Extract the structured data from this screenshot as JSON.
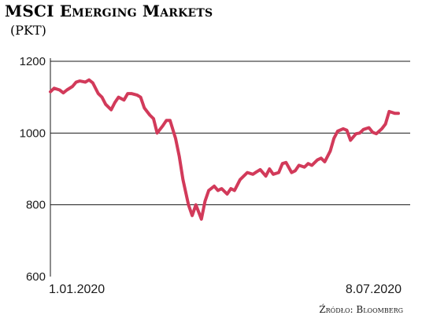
{
  "colors": {
    "line": "#d23a5a",
    "grid": "#1a1a1a",
    "text": "#1a1a1a"
  },
  "chart_data": {
    "type": "line",
    "title": "MSCI Emerging Markets",
    "subtitle": "(PKT)",
    "source": "Źródło: Bloomberg",
    "x_tick_labels": [
      "1.01.2020",
      "8.07.2020"
    ],
    "x_range": [
      "2020-01-01",
      "2020-07-08"
    ],
    "y_ticks": [
      600,
      800,
      1000,
      1200
    ],
    "ylim": [
      600,
      1200
    ],
    "grid": "horizontal",
    "series": [
      {
        "x": [
          "2020-01-01",
          "2020-01-03",
          "2020-01-06",
          "2020-01-08",
          "2020-01-10",
          "2020-01-13",
          "2020-01-15",
          "2020-01-17",
          "2020-01-20",
          "2020-01-22",
          "2020-01-24",
          "2020-01-27",
          "2020-01-29",
          "2020-01-31",
          "2020-02-03",
          "2020-02-05",
          "2020-02-07",
          "2020-02-10",
          "2020-02-12",
          "2020-02-14",
          "2020-02-17",
          "2020-02-19",
          "2020-02-21",
          "2020-02-24",
          "2020-02-26",
          "2020-02-28",
          "2020-03-02",
          "2020-03-04",
          "2020-03-06",
          "2020-03-09",
          "2020-03-11",
          "2020-03-13",
          "2020-03-16",
          "2020-03-18",
          "2020-03-20",
          "2020-03-23",
          "2020-03-25",
          "2020-03-27",
          "2020-03-30",
          "2020-04-01",
          "2020-04-03",
          "2020-04-06",
          "2020-04-08",
          "2020-04-10",
          "2020-04-13",
          "2020-04-15",
          "2020-04-17",
          "2020-04-20",
          "2020-04-22",
          "2020-04-24",
          "2020-04-27",
          "2020-04-29",
          "2020-05-01",
          "2020-05-04",
          "2020-05-06",
          "2020-05-08",
          "2020-05-11",
          "2020-05-13",
          "2020-05-15",
          "2020-05-18",
          "2020-05-20",
          "2020-05-22",
          "2020-05-25",
          "2020-05-27",
          "2020-05-29",
          "2020-06-01",
          "2020-06-03",
          "2020-06-05",
          "2020-06-08",
          "2020-06-10",
          "2020-06-12",
          "2020-06-15",
          "2020-06-17",
          "2020-06-19",
          "2020-06-22",
          "2020-06-24",
          "2020-06-26",
          "2020-06-29",
          "2020-07-01",
          "2020-07-03",
          "2020-07-06",
          "2020-07-08"
        ],
        "y": [
          1115,
          1125,
          1120,
          1112,
          1120,
          1130,
          1142,
          1145,
          1142,
          1148,
          1140,
          1110,
          1100,
          1080,
          1065,
          1085,
          1100,
          1092,
          1110,
          1110,
          1106,
          1100,
          1070,
          1050,
          1040,
          1000,
          1020,
          1035,
          1035,
          985,
          935,
          870,
          800,
          770,
          800,
          760,
          810,
          840,
          852,
          840,
          845,
          830,
          845,
          840,
          870,
          880,
          890,
          885,
          892,
          898,
          880,
          900,
          885,
          890,
          915,
          918,
          890,
          895,
          910,
          905,
          915,
          910,
          925,
          930,
          920,
          950,
          985,
          1005,
          1012,
          1008,
          980,
          998,
          1000,
          1010,
          1015,
          1002,
          998,
          1012,
          1025,
          1060,
          1055,
          1055
        ]
      }
    ]
  }
}
